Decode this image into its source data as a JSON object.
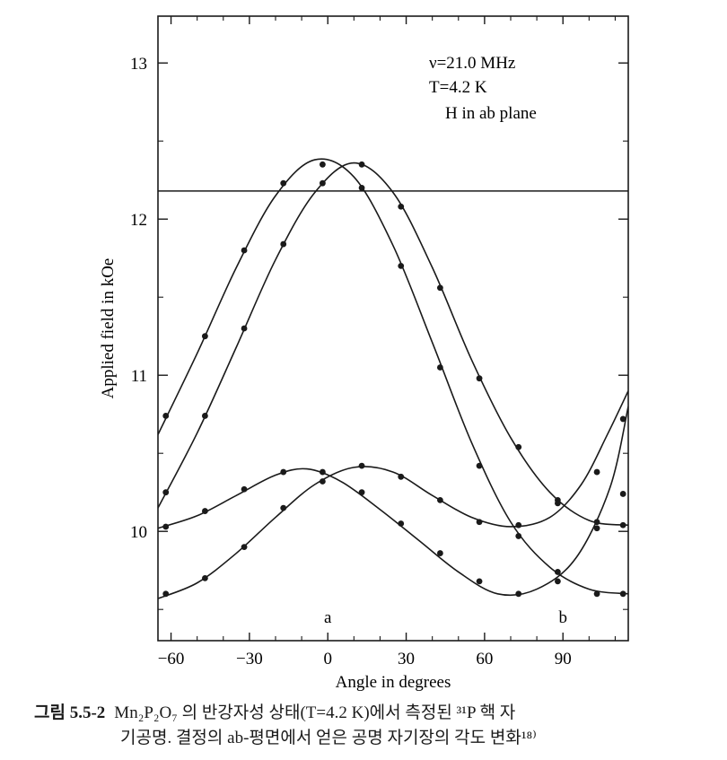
{
  "chart_data": {
    "type": "scatter",
    "xlabel": "Angle in degrees",
    "ylabel": "Applied field in kOe",
    "xlim": [
      -65,
      115
    ],
    "ylim": [
      9.3,
      13.3
    ],
    "xticks": [
      -60,
      -30,
      0,
      30,
      60,
      90
    ],
    "xtick_labels": [
      "−60",
      "−30",
      "0",
      "30",
      "60",
      "90"
    ],
    "yticks": [
      10,
      11,
      12,
      13
    ],
    "ytick_labels": [
      "10",
      "11",
      "12",
      "13"
    ],
    "annotations": {
      "lines": [
        "ν=21.0 MHz",
        "T=4.2 K",
        "H in ab plane"
      ],
      "axis_marks": [
        {
          "text": "a",
          "x": 0
        },
        {
          "text": "b",
          "x": 90
        }
      ]
    },
    "horizontal_line": 12.18,
    "series": [
      {
        "points": [
          [
            -62,
            10.74
          ],
          [
            -47,
            11.25
          ],
          [
            -32,
            11.8
          ],
          [
            -17,
            12.23
          ],
          [
            -2,
            12.35
          ],
          [
            13,
            12.2
          ],
          [
            28,
            11.7
          ],
          [
            43,
            11.05
          ],
          [
            58,
            10.42
          ],
          [
            73,
            9.97
          ],
          [
            88,
            9.74
          ],
          [
            103,
            9.6
          ],
          [
            113,
            9.6
          ]
        ],
        "curve": [
          [
            -65,
            10.62
          ],
          [
            -50,
            11.14
          ],
          [
            -35,
            11.69
          ],
          [
            -20,
            12.15
          ],
          [
            -5,
            12.38
          ],
          [
            10,
            12.27
          ],
          [
            25,
            11.83
          ],
          [
            40,
            11.21
          ],
          [
            55,
            10.57
          ],
          [
            70,
            10.06
          ],
          [
            85,
            9.77
          ],
          [
            100,
            9.63
          ],
          [
            115,
            9.6
          ]
        ]
      },
      {
        "points": [
          [
            -62,
            10.25
          ],
          [
            -47,
            10.74
          ],
          [
            -32,
            11.3
          ],
          [
            -17,
            11.84
          ],
          [
            -2,
            12.23
          ],
          [
            13,
            12.35
          ],
          [
            28,
            12.08
          ],
          [
            43,
            11.56
          ],
          [
            58,
            10.98
          ],
          [
            73,
            10.54
          ],
          [
            88,
            10.2
          ],
          [
            103,
            10.06
          ],
          [
            113,
            10.04
          ]
        ],
        "curve": [
          [
            -65,
            10.15
          ],
          [
            -50,
            10.63
          ],
          [
            -35,
            11.18
          ],
          [
            -20,
            11.74
          ],
          [
            -5,
            12.17
          ],
          [
            10,
            12.36
          ],
          [
            25,
            12.17
          ],
          [
            40,
            11.69
          ],
          [
            55,
            11.1
          ],
          [
            70,
            10.6
          ],
          [
            85,
            10.25
          ],
          [
            100,
            10.07
          ],
          [
            115,
            10.04
          ]
        ]
      },
      {
        "points": [
          [
            -62,
            10.03
          ],
          [
            -47,
            10.13
          ],
          [
            -32,
            10.27
          ],
          [
            -17,
            10.38
          ],
          [
            -2,
            10.38
          ],
          [
            13,
            10.25
          ],
          [
            28,
            10.05
          ],
          [
            43,
            9.86
          ],
          [
            58,
            9.68
          ],
          [
            73,
            9.6
          ],
          [
            88,
            9.68
          ],
          [
            103,
            10.02
          ],
          [
            113,
            10.72
          ]
        ],
        "curve": [
          [
            -65,
            10.02
          ],
          [
            -50,
            10.1
          ],
          [
            -35,
            10.23
          ],
          [
            -20,
            10.36
          ],
          [
            -8,
            10.4
          ],
          [
            5,
            10.32
          ],
          [
            20,
            10.14
          ],
          [
            35,
            9.94
          ],
          [
            50,
            9.74
          ],
          [
            65,
            9.6
          ],
          [
            80,
            9.63
          ],
          [
            95,
            9.83
          ],
          [
            108,
            10.28
          ],
          [
            115,
            10.8
          ]
        ]
      },
      {
        "points": [
          [
            -62,
            9.6
          ],
          [
            -47,
            9.7
          ],
          [
            -32,
            9.9
          ],
          [
            -17,
            10.15
          ],
          [
            -2,
            10.32
          ],
          [
            13,
            10.42
          ],
          [
            28,
            10.35
          ],
          [
            43,
            10.2
          ],
          [
            58,
            10.06
          ],
          [
            73,
            10.04
          ],
          [
            88,
            10.18
          ],
          [
            103,
            10.38
          ],
          [
            113,
            10.24
          ]
        ],
        "curve": [
          [
            -65,
            9.57
          ],
          [
            -50,
            9.67
          ],
          [
            -35,
            9.86
          ],
          [
            -20,
            10.09
          ],
          [
            -5,
            10.3
          ],
          [
            10,
            10.41
          ],
          [
            25,
            10.38
          ],
          [
            40,
            10.23
          ],
          [
            55,
            10.09
          ],
          [
            70,
            10.03
          ],
          [
            85,
            10.09
          ],
          [
            97,
            10.3
          ],
          [
            107,
            10.62
          ],
          [
            115,
            10.9
          ]
        ]
      }
    ]
  },
  "caption": {
    "number": "그림 5.5-2",
    "line1": "Mn₂P₂O₇ 의 반강자성 상태(T=4.2 K)에서 측정된 ³¹P 핵 자",
    "line2": "기공명. 결정의 ab-평면에서 얻은 공명 자기장의 각도 변화¹⁸⁾"
  }
}
